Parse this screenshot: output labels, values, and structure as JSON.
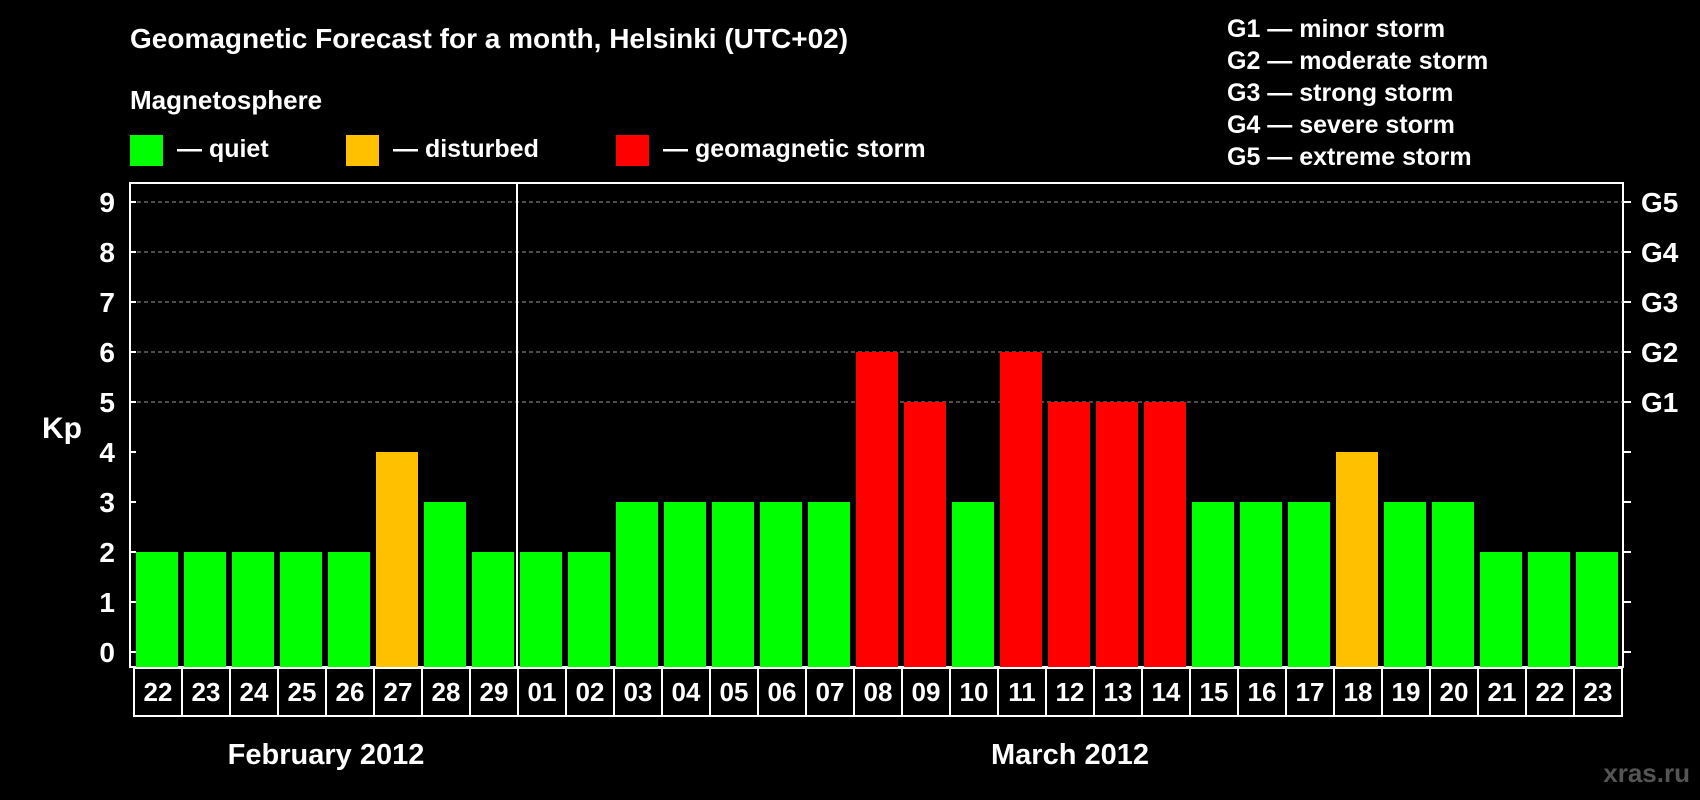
{
  "title": "Geomagnetic Forecast for a month, Helsinki (UTC+02)",
  "legend": {
    "heading": "Magnetosphere",
    "items": [
      {
        "label": "— quiet",
        "color": "#00ff00"
      },
      {
        "label": "— disturbed",
        "color": "#ffc000"
      },
      {
        "label": "— geomagnetic storm",
        "color": "#ff0000"
      }
    ]
  },
  "storm_scale": [
    "G1 — minor storm",
    "G2 — moderate storm",
    "G3 — strong storm",
    "G4 — severe storm",
    "G5 — extreme storm"
  ],
  "watermark": "xras.ru",
  "chart_data": {
    "type": "bar",
    "ylabel": "Kp",
    "ylim": [
      0,
      9
    ],
    "y_ticks": [
      "0",
      "1",
      "2",
      "3",
      "4",
      "5",
      "6",
      "7",
      "8",
      "9"
    ],
    "right_axis_labels": [
      {
        "value": 5,
        "label": "G1"
      },
      {
        "value": 6,
        "label": "G2"
      },
      {
        "value": 7,
        "label": "G3"
      },
      {
        "value": 8,
        "label": "G4"
      },
      {
        "value": 9,
        "label": "G5"
      }
    ],
    "grid": "horizontal dashed at Kp 5-9",
    "categories": [
      "22",
      "23",
      "24",
      "25",
      "26",
      "27",
      "28",
      "29",
      "01",
      "02",
      "03",
      "04",
      "05",
      "06",
      "07",
      "08",
      "09",
      "10",
      "11",
      "12",
      "13",
      "14",
      "15",
      "16",
      "17",
      "18",
      "19",
      "20",
      "21",
      "22",
      "23"
    ],
    "values": [
      2,
      2,
      2,
      2,
      2,
      4,
      3,
      2,
      2,
      2,
      3,
      3,
      3,
      3,
      3,
      6,
      5,
      3,
      6,
      5,
      5,
      5,
      3,
      3,
      3,
      4,
      3,
      3,
      2,
      2,
      2
    ],
    "status": [
      "quiet",
      "quiet",
      "quiet",
      "quiet",
      "quiet",
      "disturbed",
      "quiet",
      "quiet",
      "quiet",
      "quiet",
      "quiet",
      "quiet",
      "quiet",
      "quiet",
      "quiet",
      "storm",
      "storm",
      "quiet",
      "storm",
      "storm",
      "storm",
      "storm",
      "quiet",
      "quiet",
      "quiet",
      "disturbed",
      "quiet",
      "quiet",
      "quiet",
      "quiet",
      "quiet"
    ],
    "status_colors": {
      "quiet": "#00ff00",
      "disturbed": "#ffc000",
      "storm": "#ff0000"
    },
    "month_groups": [
      {
        "label": "February 2012",
        "count": 8
      },
      {
        "label": "March 2012",
        "count": 23
      }
    ]
  }
}
